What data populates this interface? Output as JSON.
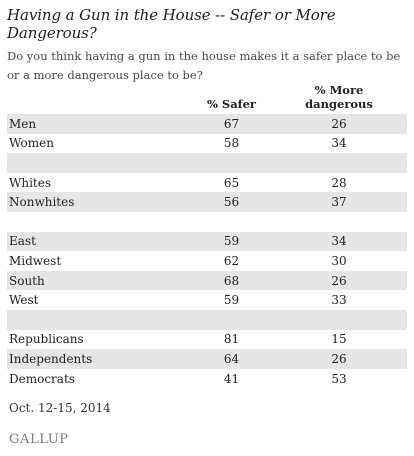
{
  "title": "Having a Gun in the House -- Safer or More Dangerous?",
  "question": "Do you think having a gun in the house makes it a safer place to be or a more dangerous place to be?",
  "columns": [
    "",
    "% Safer",
    "% More dangerous"
  ],
  "rows": [
    {
      "label": "Men",
      "safer": "67",
      "dangerous": "26"
    },
    {
      "label": "Women",
      "safer": "58",
      "dangerous": "34"
    },
    {
      "label": "",
      "safer": "",
      "dangerous": ""
    },
    {
      "label": "Whites",
      "safer": "65",
      "dangerous": "28"
    },
    {
      "label": "Nonwhites",
      "safer": "56",
      "dangerous": "37"
    },
    {
      "label": "",
      "safer": "",
      "dangerous": ""
    },
    {
      "label": "East",
      "safer": "59",
      "dangerous": "34"
    },
    {
      "label": "Midwest",
      "safer": "62",
      "dangerous": "30"
    },
    {
      "label": "South",
      "safer": "68",
      "dangerous": "26"
    },
    {
      "label": "West",
      "safer": "59",
      "dangerous": "33"
    },
    {
      "label": "",
      "safer": "",
      "dangerous": ""
    },
    {
      "label": "Republicans",
      "safer": "81",
      "dangerous": "15"
    },
    {
      "label": "Independents",
      "safer": "64",
      "dangerous": "26"
    },
    {
      "label": "Democrats",
      "safer": "41",
      "dangerous": "53"
    }
  ],
  "date": "Oct. 12-15, 2014",
  "logo": "GALLUP"
}
